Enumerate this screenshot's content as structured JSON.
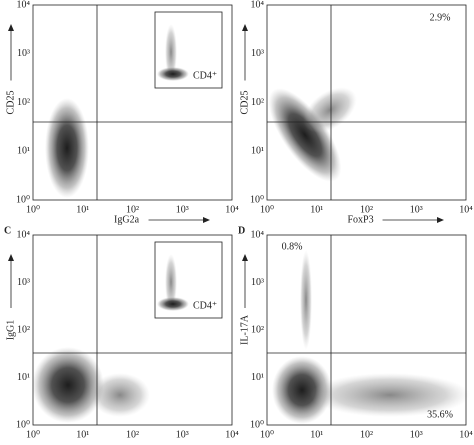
{
  "axis_ticks": [
    "10⁰",
    "10¹",
    "10²",
    "10³",
    "10⁴"
  ],
  "panels": [
    {
      "y_label": "CD25",
      "x_label": "IgG2a",
      "inset": "CD4⁺",
      "annotations": []
    },
    {
      "y_label": "CD25",
      "x_label": "FoxP3",
      "annotations": [
        "2.9%"
      ]
    },
    {
      "label": "C",
      "y_label": "IgG1",
      "inset": "CD4⁺",
      "annotations": []
    },
    {
      "label": "D",
      "y_label": "IL-17A",
      "annotations": [
        "0.8%",
        "35.6%"
      ]
    }
  ]
}
